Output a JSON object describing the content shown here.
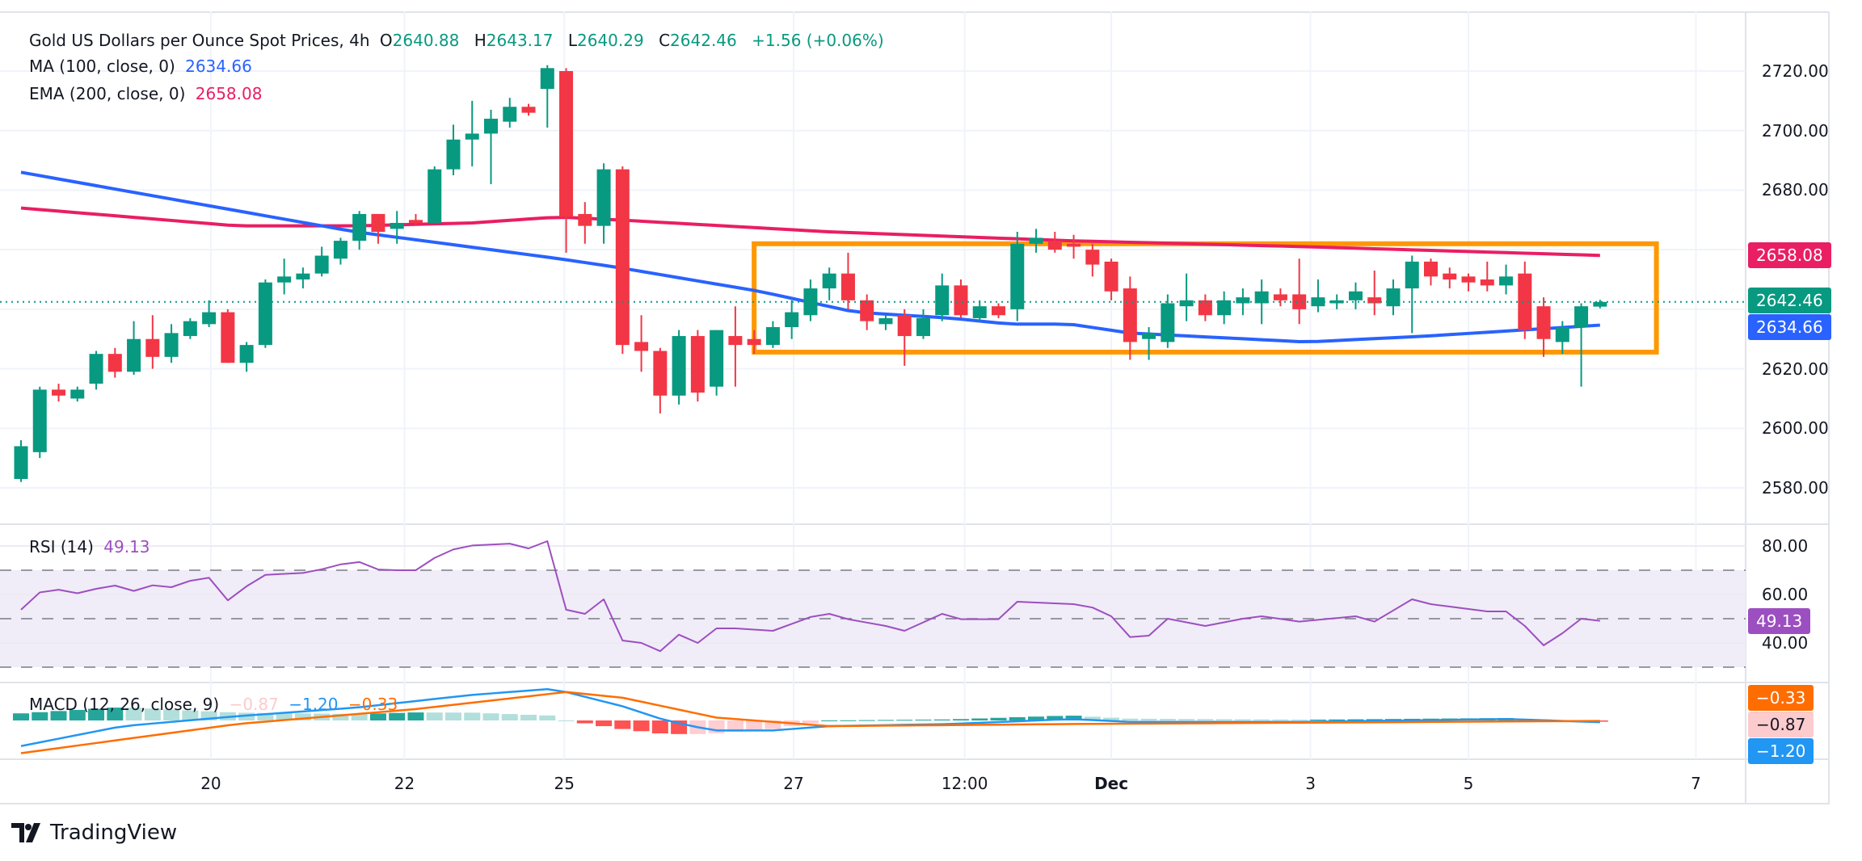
{
  "header": {
    "title": "Gold US Dollars per Ounce Spot Prices, 4h",
    "open_label": "O",
    "open": "2640.88",
    "high_label": "H",
    "high": "2643.17",
    "low_label": "L",
    "low": "2640.29",
    "close_label": "C",
    "close": "2642.46",
    "change": "+1.56 (+0.06%)"
  },
  "indicators": {
    "ma": {
      "label": "MA (100, close, 0)",
      "value": "2634.66",
      "color": "#2962FF"
    },
    "ema": {
      "label": "EMA (200, close, 0)",
      "value": "2658.08",
      "color": "#E91E63"
    },
    "rsi": {
      "label": "RSI (14)",
      "value": "49.13",
      "color": "#9C4FC0"
    },
    "macd": {
      "label": "MACD (12, 26, close, 9)",
      "histogram": "−0.87",
      "macd": "−1.20",
      "signal": "−0.33",
      "hist_color": "#FCCBCD",
      "macd_color": "#2196F3",
      "signal_color": "#FF6D00"
    }
  },
  "badges": {
    "ema": "2658.08",
    "close": "2642.46",
    "ma": "2634.66",
    "rsi": "49.13",
    "signal": "−0.33",
    "histogram": "−0.87",
    "macd": "−1.20"
  },
  "colors": {
    "up": "#089981",
    "down": "#F23645",
    "box": "#FF9800",
    "rsi_band": "#F0ECF8"
  },
  "logo": {
    "text": "TradingView"
  },
  "chart_data": {
    "type": "candlestick",
    "price_axis": {
      "ticks": [
        "2720.00",
        "2700.00",
        "2680.00",
        "2620.00",
        "2600.00",
        "2580.00"
      ],
      "tick_values": [
        2720,
        2700,
        2680,
        2660,
        2640,
        2620,
        2600,
        2580
      ]
    },
    "rsi_axis": {
      "ticks": [
        "80.00",
        "60.00",
        "40.00"
      ],
      "tick_values": [
        80,
        60,
        40
      ],
      "band": [
        30,
        70
      ],
      "mid": 50
    },
    "time_axis": {
      "ticks": [
        {
          "label": "20",
          "bar": 10.1
        },
        {
          "label": "22",
          "bar": 20.4
        },
        {
          "label": "25",
          "bar": 28.9
        },
        {
          "label": "27",
          "bar": 41.1
        },
        {
          "label": "12:00",
          "bar": 50.2
        },
        {
          "label": "Dec",
          "bar": 58.0
        },
        {
          "label": "3",
          "bar": 68.6
        },
        {
          "label": "5",
          "bar": 77.0
        },
        {
          "label": "7",
          "bar": 89.1
        }
      ]
    },
    "candles_ohlc": [
      [
        2583,
        2596,
        2582,
        2594
      ],
      [
        2592,
        2614,
        2590,
        2613
      ],
      [
        2613,
        2615,
        2609,
        2611
      ],
      [
        2610,
        2614,
        2609,
        2613
      ],
      [
        2615,
        2626,
        2613,
        2625
      ],
      [
        2625,
        2627,
        2617,
        2619
      ],
      [
        2619,
        2636,
        2618,
        2630
      ],
      [
        2630,
        2638,
        2620,
        2624
      ],
      [
        2624,
        2635,
        2622,
        2632
      ],
      [
        2631,
        2637,
        2630,
        2636
      ],
      [
        2635,
        2643,
        2634,
        2639
      ],
      [
        2639,
        2640,
        2622,
        2622
      ],
      [
        2622,
        2629,
        2619,
        2628
      ],
      [
        2628,
        2650,
        2627,
        2649
      ],
      [
        2649,
        2657,
        2645,
        2651
      ],
      [
        2650,
        2654,
        2647,
        2652
      ],
      [
        2652,
        2661,
        2651,
        2658
      ],
      [
        2657,
        2664,
        2655,
        2663
      ],
      [
        2663,
        2673,
        2660,
        2672
      ],
      [
        2672,
        2672,
        2662,
        2666
      ],
      [
        2667,
        2673,
        2662,
        2669
      ],
      [
        2670,
        2672,
        2668,
        2669
      ],
      [
        2669,
        2688,
        2669,
        2687
      ],
      [
        2687,
        2702,
        2685,
        2697
      ],
      [
        2697,
        2710,
        2688,
        2699
      ],
      [
        2699,
        2707,
        2682,
        2704
      ],
      [
        2703,
        2711,
        2701,
        2708
      ],
      [
        2708,
        2709,
        2705,
        2706
      ],
      [
        2714,
        2722,
        2701,
        2721
      ],
      [
        2720,
        2721,
        2659,
        2671
      ],
      [
        2672,
        2676,
        2662,
        2668
      ],
      [
        2668,
        2689,
        2662,
        2687
      ],
      [
        2687,
        2688,
        2625,
        2628
      ],
      [
        2629,
        2638,
        2619,
        2626
      ],
      [
        2626,
        2627,
        2605,
        2611
      ],
      [
        2611,
        2633,
        2608,
        2631
      ],
      [
        2631,
        2633,
        2609,
        2612
      ],
      [
        2614,
        2633,
        2611,
        2633
      ],
      [
        2631,
        2641,
        2614,
        2628
      ],
      [
        2630,
        2633,
        2625,
        2628
      ],
      [
        2628,
        2636,
        2627,
        2634
      ],
      [
        2634,
        2643,
        2630,
        2639
      ],
      [
        2638,
        2650,
        2636,
        2647
      ],
      [
        2647,
        2654,
        2643,
        2652
      ],
      [
        2652,
        2659,
        2640,
        2643
      ],
      [
        2643,
        2645,
        2633,
        2636
      ],
      [
        2635,
        2638,
        2633,
        2637
      ],
      [
        2638,
        2640,
        2621,
        2631
      ],
      [
        2631,
        2640,
        2630,
        2637
      ],
      [
        2638,
        2652,
        2636,
        2648
      ],
      [
        2648,
        2650,
        2637,
        2638
      ],
      [
        2637,
        2643,
        2636,
        2641
      ],
      [
        2641,
        2642,
        2637,
        2638
      ],
      [
        2640,
        2666,
        2636,
        2662
      ],
      [
        2662,
        2667,
        2659,
        2664
      ],
      [
        2663,
        2666,
        2659,
        2660
      ],
      [
        2662,
        2665,
        2657,
        2661
      ],
      [
        2660,
        2662,
        2651,
        2655
      ],
      [
        2656,
        2657,
        2643,
        2646
      ],
      [
        2647,
        2651,
        2623,
        2629
      ],
      [
        2630,
        2634,
        2623,
        2632
      ],
      [
        2629,
        2645,
        2627,
        2642
      ],
      [
        2641,
        2652,
        2636,
        2643
      ],
      [
        2643,
        2645,
        2636,
        2638
      ],
      [
        2638,
        2646,
        2635,
        2643
      ],
      [
        2642,
        2647,
        2638,
        2644
      ],
      [
        2642,
        2650,
        2635,
        2646
      ],
      [
        2645,
        2647,
        2641,
        2643
      ],
      [
        2645,
        2657,
        2635,
        2640
      ],
      [
        2641,
        2650,
        2639,
        2644
      ],
      [
        2642,
        2645,
        2640,
        2643
      ],
      [
        2643,
        2649,
        2640,
        2646
      ],
      [
        2644,
        2653,
        2638,
        2642
      ],
      [
        2641,
        2650,
        2638,
        2647
      ],
      [
        2647,
        2658,
        2632,
        2656
      ],
      [
        2656,
        2657,
        2648,
        2651
      ],
      [
        2652,
        2654,
        2647,
        2650
      ],
      [
        2651,
        2652,
        2646,
        2649
      ],
      [
        2650,
        2656,
        2646,
        2648
      ],
      [
        2648,
        2655,
        2645,
        2651
      ],
      [
        2652,
        2656,
        2630,
        2633
      ],
      [
        2641,
        2644,
        2624,
        2630
      ],
      [
        2629,
        2636,
        2625,
        2634
      ],
      [
        2634,
        2642,
        2614,
        2641
      ],
      [
        2640.88,
        2643.17,
        2640.29,
        2642.46
      ]
    ],
    "ma100": [
      [
        0,
        2686
      ],
      [
        17.8,
        2666
      ],
      [
        28.6,
        2657
      ],
      [
        31.8,
        2654
      ],
      [
        39.3,
        2646
      ],
      [
        44.4,
        2639
      ],
      [
        49.5,
        2637
      ],
      [
        52.6,
        2635
      ],
      [
        55.8,
        2635
      ],
      [
        59,
        2632
      ],
      [
        68.4,
        2629
      ],
      [
        74.8,
        2631
      ],
      [
        79.8,
        2633
      ],
      [
        84,
        2634.66
      ]
    ],
    "ema200": [
      [
        0,
        2674
      ],
      [
        11.5,
        2668
      ],
      [
        17.8,
        2668
      ],
      [
        24,
        2669
      ],
      [
        28.6,
        2671
      ],
      [
        31.8,
        2670
      ],
      [
        43,
        2666
      ],
      [
        55.8,
        2663
      ],
      [
        68.4,
        2661
      ],
      [
        84,
        2658.08
      ]
    ],
    "rsi": [
      [
        0,
        53.7
      ],
      [
        1.3,
        63
      ],
      [
        3,
        60.5
      ],
      [
        4.9,
        64
      ],
      [
        5.8,
        61
      ],
      [
        7.1,
        64
      ],
      [
        8,
        63
      ],
      [
        9.9,
        68
      ],
      [
        10.9,
        57
      ],
      [
        12.8,
        68
      ],
      [
        15.3,
        69
      ],
      [
        17.8,
        74
      ],
      [
        19.1,
        70
      ],
      [
        21,
        70
      ],
      [
        22.3,
        76.6
      ],
      [
        23.5,
        80
      ],
      [
        26.1,
        81
      ],
      [
        27,
        79
      ],
      [
        28,
        82
      ],
      [
        29,
        53.7
      ],
      [
        30,
        52
      ],
      [
        31,
        58
      ],
      [
        32,
        41
      ],
      [
        33,
        40
      ],
      [
        34,
        36.6
      ],
      [
        35,
        43.4
      ],
      [
        36,
        40
      ],
      [
        37,
        46
      ],
      [
        38,
        46
      ],
      [
        40,
        45
      ],
      [
        42,
        50.7
      ],
      [
        43,
        52
      ],
      [
        44,
        49.8
      ],
      [
        46,
        47
      ],
      [
        47,
        45
      ],
      [
        49,
        52
      ],
      [
        50,
        49.8
      ],
      [
        52,
        49.8
      ],
      [
        53,
        57
      ],
      [
        56,
        56
      ],
      [
        57,
        54.6
      ],
      [
        58,
        51
      ],
      [
        59,
        42.4
      ],
      [
        60,
        43
      ],
      [
        61,
        50
      ],
      [
        63,
        47
      ],
      [
        65,
        50
      ],
      [
        66,
        51
      ],
      [
        68,
        48.8
      ],
      [
        71,
        51
      ],
      [
        72,
        48.8
      ],
      [
        74,
        58
      ],
      [
        75,
        56
      ],
      [
        78,
        53
      ],
      [
        79,
        53
      ],
      [
        80,
        47
      ],
      [
        81,
        39
      ],
      [
        82,
        44
      ],
      [
        83,
        50
      ],
      [
        84,
        49.13
      ]
    ],
    "macd_line": [
      [
        0,
        -18
      ],
      [
        5.4,
        -4
      ],
      [
        11.5,
        3
      ],
      [
        17.8,
        9
      ],
      [
        24,
        18
      ],
      [
        28,
        22
      ],
      [
        29,
        20
      ],
      [
        32,
        10
      ],
      [
        34.3,
        0
      ],
      [
        36.8,
        -7
      ],
      [
        40,
        -7
      ],
      [
        43,
        -4
      ],
      [
        49.5,
        -2.5
      ],
      [
        55.8,
        1
      ],
      [
        59,
        -1
      ],
      [
        68.4,
        -1
      ],
      [
        79,
        1
      ],
      [
        84,
        -1.2
      ]
    ],
    "signal_line": [
      [
        0,
        -23
      ],
      [
        11.5,
        -2.5
      ],
      [
        21,
        8
      ],
      [
        29,
        20
      ],
      [
        32,
        16
      ],
      [
        37,
        2
      ],
      [
        43,
        -4
      ],
      [
        56,
        -2.5
      ],
      [
        84,
        -0.33
      ]
    ],
    "range_box": {
      "from_bar": 39,
      "to_bar": 87,
      "top": 2662,
      "bottom": 2625.6
    }
  }
}
